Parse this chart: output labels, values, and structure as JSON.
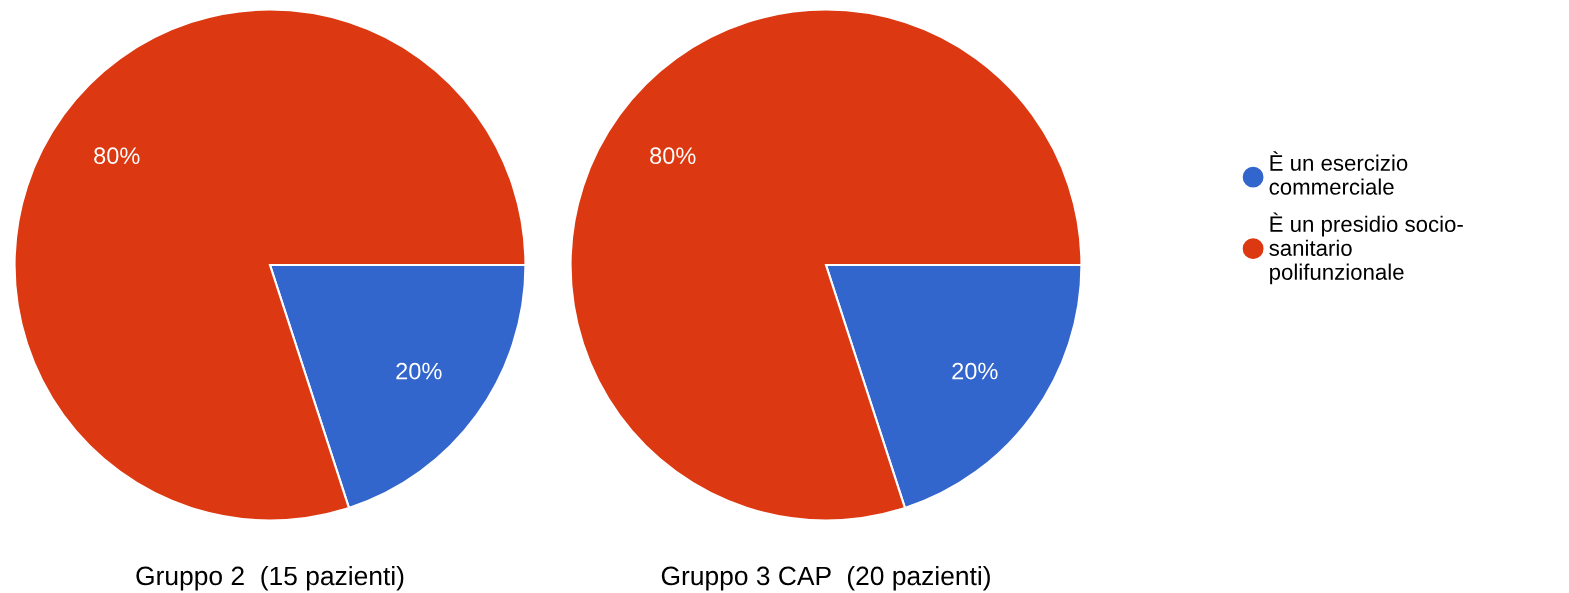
{
  "chart_data": [
    {
      "type": "pie",
      "title": "Gruppo 2  (15 pazienti)",
      "categories": [
        "È un esercizio commerciale",
        "È un presidio socio-sanitario polifunzionale"
      ],
      "values": [
        20,
        80
      ],
      "colors": [
        "#3366cc",
        "#dc3912"
      ],
      "value_labels": [
        "20%",
        "80%"
      ],
      "legend": "right"
    },
    {
      "type": "pie",
      "title": "Gruppo 3 CAP  (20 pazienti)",
      "categories": [
        null,
        null
      ],
      "values": [
        20,
        80
      ],
      "colors": [
        "#3366cc",
        "#dc3912"
      ],
      "value_labels": [
        "20%",
        "80%"
      ]
    }
  ]
}
